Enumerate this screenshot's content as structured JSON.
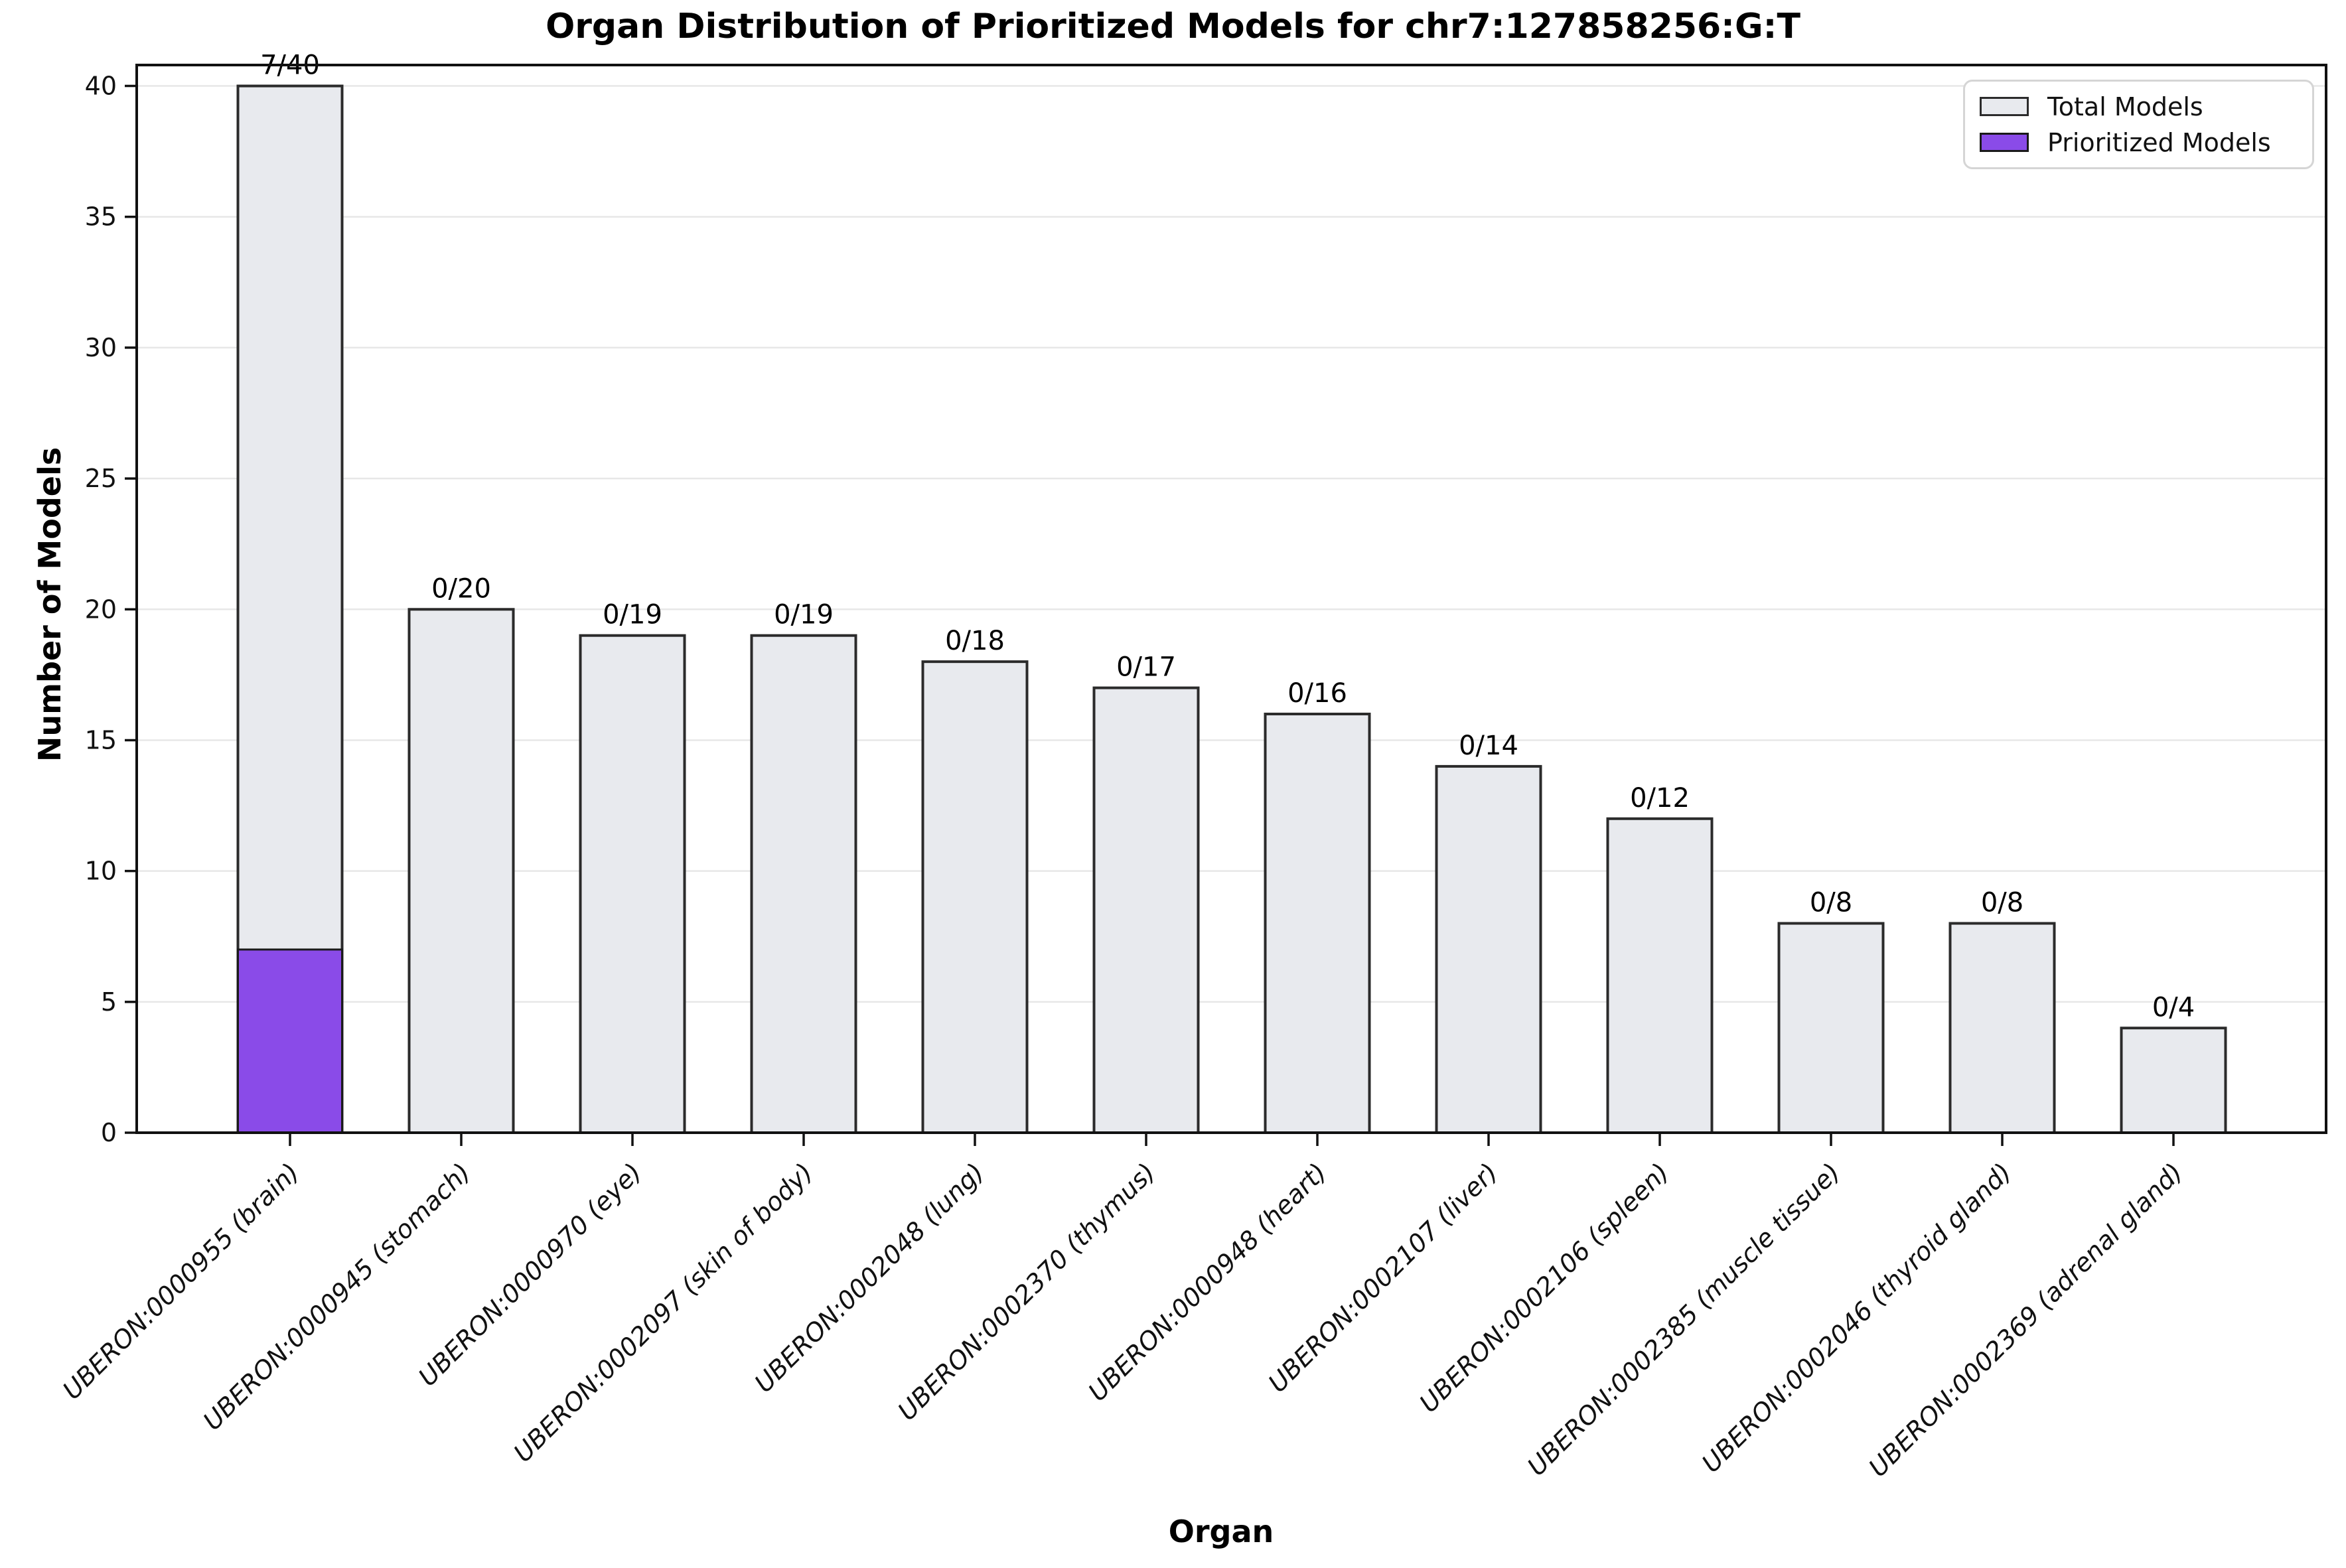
{
  "figure": {
    "title": "Organ Distribution of Prioritized Models for chr7:127858256:G:T",
    "xlabel": "Organ",
    "ylabel": "Number of Models"
  },
  "legend": {
    "entries": [
      {
        "label": "Total Models",
        "color": "#e8eaee",
        "edge": "#2b2b2b"
      },
      {
        "label": "Prioritized Models",
        "color": "#8a4be8",
        "edge": "#1a1a1a"
      }
    ]
  },
  "chart_data": {
    "type": "bar",
    "title": "Organ Distribution of Prioritized Models for chr7:127858256:G:T",
    "xlabel": "Organ",
    "ylabel": "Number of Models",
    "ylim": [
      0,
      40.8
    ],
    "yticks": [
      0,
      5,
      10,
      15,
      20,
      25,
      30,
      35,
      40
    ],
    "grid": "horizontal",
    "grid_color": "#e7e7e7",
    "legend_position": "upper right",
    "categories": [
      "UBERON:0000955 (brain)",
      "UBERON:0000945 (stomach)",
      "UBERON:0000970 (eye)",
      "UBERON:0002097 (skin of body)",
      "UBERON:0002048 (lung)",
      "UBERON:0002370 (thymus)",
      "UBERON:0000948 (heart)",
      "UBERON:0002107 (liver)",
      "UBERON:0002106 (spleen)",
      "UBERON:0002385 (muscle tissue)",
      "UBERON:0002046 (thyroid gland)",
      "UBERON:0002369 (adrenal gland)"
    ],
    "series": [
      {
        "name": "Total Models",
        "color": "#e8eaee",
        "edge_color": "#2b2b2b",
        "values": [
          40,
          20,
          19,
          19,
          18,
          17,
          16,
          14,
          12,
          8,
          8,
          4
        ]
      },
      {
        "name": "Prioritized Models",
        "color": "#8a4be8",
        "edge_color": "#1a1a1a",
        "values": [
          7,
          0,
          0,
          0,
          0,
          0,
          0,
          0,
          0,
          0,
          0,
          0
        ]
      }
    ],
    "bar_labels": [
      "7/40",
      "0/20",
      "0/19",
      "0/19",
      "0/18",
      "0/17",
      "0/16",
      "0/14",
      "0/12",
      "0/8",
      "0/8",
      "0/4"
    ]
  }
}
